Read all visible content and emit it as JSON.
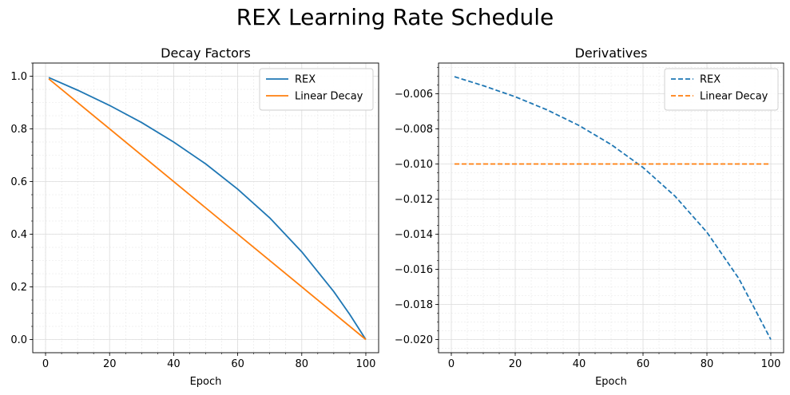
{
  "figure": {
    "title": "REX Learning Rate Schedule"
  },
  "chart_data": [
    {
      "type": "line",
      "title": "Decay Factors",
      "xlabel": "Epoch",
      "ylabel": "",
      "xlim": [
        -4,
        104
      ],
      "ylim": [
        -0.05,
        1.05
      ],
      "xticks": [
        0,
        20,
        40,
        60,
        80,
        100
      ],
      "xtick_labels": [
        "0",
        "20",
        "40",
        "60",
        "80",
        "100"
      ],
      "yticks": [
        0.0,
        0.2,
        0.4,
        0.6,
        0.8,
        1.0
      ],
      "ytick_labels": [
        "0.0",
        "0.2",
        "0.4",
        "0.6",
        "0.8",
        "1.0"
      ],
      "grid": true,
      "minor_grid": true,
      "legend_position": "top-right",
      "series": [
        {
          "name": "REX",
          "color": "#1f77b4",
          "style": "solid",
          "x": [
            1,
            10,
            20,
            30,
            40,
            50,
            60,
            70,
            80,
            90,
            95,
            100
          ],
          "y": [
            0.995,
            0.947,
            0.889,
            0.824,
            0.75,
            0.667,
            0.571,
            0.462,
            0.333,
            0.182,
            0.095,
            0.0
          ]
        },
        {
          "name": "Linear Decay",
          "color": "#ff7f0e",
          "style": "solid",
          "x": [
            1,
            100
          ],
          "y": [
            0.99,
            0.0
          ]
        }
      ]
    },
    {
      "type": "line",
      "title": "Derivatives",
      "xlabel": "Epoch",
      "ylabel": "",
      "xlim": [
        -4,
        104
      ],
      "ylim": [
        -0.02075,
        -0.00425
      ],
      "xticks": [
        0,
        20,
        40,
        60,
        80,
        100
      ],
      "xtick_labels": [
        "0",
        "20",
        "40",
        "60",
        "80",
        "100"
      ],
      "yticks": [
        -0.02,
        -0.018,
        -0.016,
        -0.014,
        -0.012,
        -0.01,
        -0.008,
        -0.006
      ],
      "ytick_labels": [
        "−0.020",
        "−0.018",
        "−0.016",
        "−0.014",
        "−0.012",
        "−0.010",
        "−0.008",
        "−0.006"
      ],
      "grid": true,
      "minor_grid": true,
      "legend_position": "top-right",
      "series": [
        {
          "name": "REX",
          "color": "#1f77b4",
          "style": "dashed",
          "x": [
            1,
            10,
            20,
            30,
            40,
            50,
            60,
            70,
            80,
            90,
            100
          ],
          "y": [
            -0.00503,
            -0.00554,
            -0.00617,
            -0.00692,
            -0.00781,
            -0.00889,
            -0.0102,
            -0.01183,
            -0.01389,
            -0.01653,
            -0.02
          ]
        },
        {
          "name": "Linear Decay",
          "color": "#ff7f0e",
          "style": "dashed",
          "x": [
            1,
            100
          ],
          "y": [
            -0.01,
            -0.01
          ]
        }
      ]
    }
  ]
}
